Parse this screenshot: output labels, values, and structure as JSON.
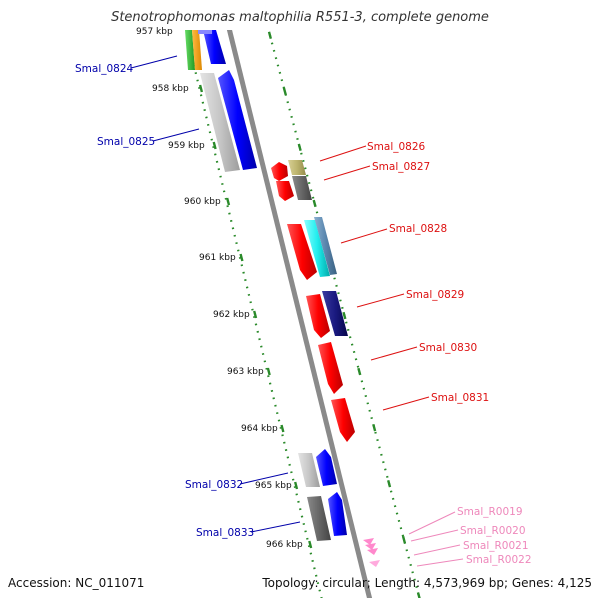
{
  "title": "Stenotrophomonas maltophilia R551-3, complete genome",
  "footer": {
    "accession": "Accession: NC_011071",
    "summary": "Topology: circular; Length: 4,573,969 bp; Genes: 4,125"
  },
  "colors": {
    "backbone": "#8a8a8a",
    "tick": "#2a8a2a",
    "left_label": "#0000aa",
    "right_label": "#dd1111",
    "rna_label": "#ee88bb"
  },
  "scale_labels": [
    "957 kbp",
    "958 kbp",
    "959 kbp",
    "960 kbp",
    "961 kbp",
    "962 kbp",
    "963 kbp",
    "964 kbp",
    "965 kbp",
    "966 kbp"
  ],
  "genes": [
    {
      "label": "Smal_0824",
      "side": "left"
    },
    {
      "label": "Smal_0825",
      "side": "left"
    },
    {
      "label": "Smal_0826",
      "side": "right"
    },
    {
      "label": "Smal_0827",
      "side": "right"
    },
    {
      "label": "Smal_0828",
      "side": "right"
    },
    {
      "label": "Smal_0829",
      "side": "right"
    },
    {
      "label": "Smal_0830",
      "side": "right"
    },
    {
      "label": "Smal_0831",
      "side": "right"
    },
    {
      "label": "Smal_0832",
      "side": "left"
    },
    {
      "label": "Smal_0833",
      "side": "left"
    },
    {
      "label": "Smal_R0019",
      "side": "rna"
    },
    {
      "label": "Smal_R0020",
      "side": "rna"
    },
    {
      "label": "Smal_R0021",
      "side": "rna"
    },
    {
      "label": "Smal_R0022",
      "side": "rna"
    }
  ]
}
